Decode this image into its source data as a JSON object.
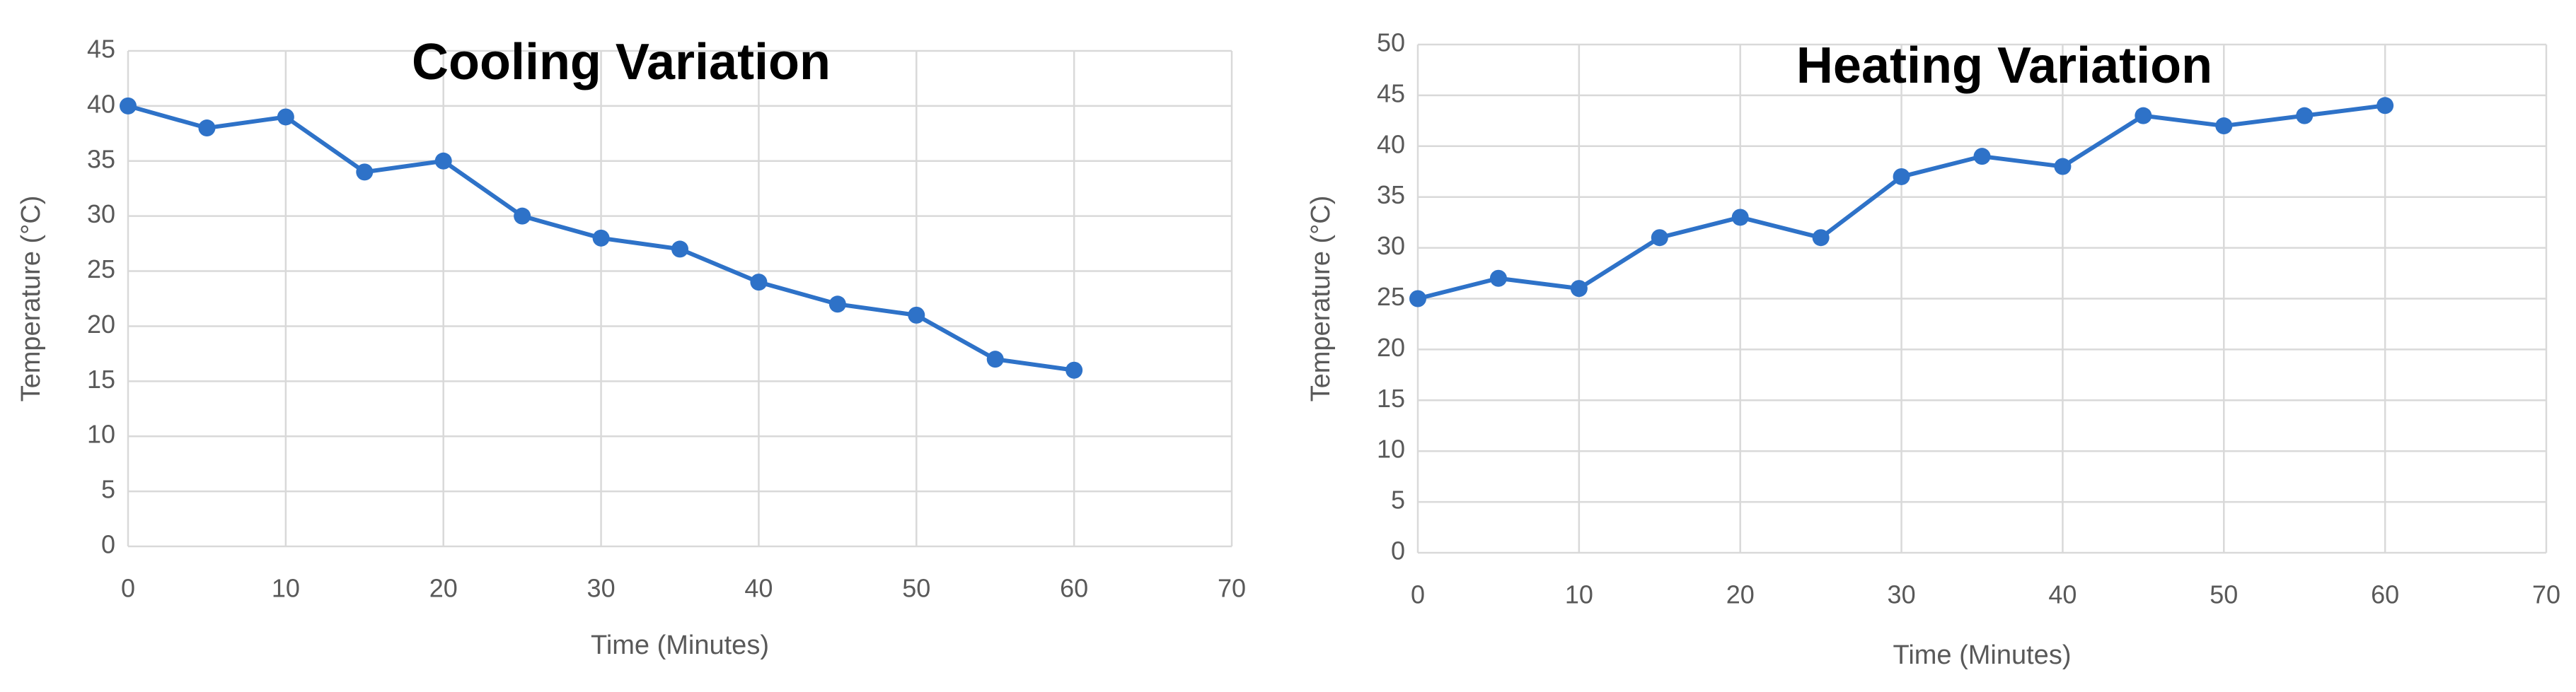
{
  "chart_data": [
    {
      "type": "line",
      "title": "Cooling Variation",
      "xlabel": "Time (Minutes)",
      "ylabel": "Temperature (°C)",
      "x": [
        0,
        5,
        10,
        15,
        20,
        25,
        30,
        35,
        40,
        45,
        50,
        55,
        60
      ],
      "values": [
        40,
        38,
        39,
        34,
        35,
        30,
        28,
        27,
        24,
        22,
        21,
        17,
        16
      ],
      "color": "#2e72c8",
      "grid": true,
      "xlim": [
        0,
        70
      ],
      "xticks": [
        0,
        10,
        20,
        30,
        40,
        50,
        60,
        70
      ],
      "ylim": [
        0,
        45
      ],
      "yticks": [
        0,
        5,
        10,
        15,
        20,
        25,
        30,
        35,
        40,
        45
      ]
    },
    {
      "type": "line",
      "title": "Heating Variation",
      "xlabel": "Time (Minutes)",
      "ylabel": "Temperature (°C)",
      "x": [
        0,
        5,
        10,
        15,
        20,
        25,
        30,
        35,
        40,
        45,
        50,
        55,
        60
      ],
      "values": [
        25,
        27,
        26,
        31,
        33,
        31,
        37,
        39,
        38,
        43,
        42,
        43,
        44
      ],
      "color": "#2e72c8",
      "grid": true,
      "xlim": [
        0,
        70
      ],
      "xticks": [
        0,
        10,
        20,
        30,
        40,
        50,
        60,
        70
      ],
      "ylim": [
        0,
        50
      ],
      "yticks": [
        0,
        5,
        10,
        15,
        20,
        25,
        30,
        35,
        40,
        45,
        50
      ]
    }
  ]
}
